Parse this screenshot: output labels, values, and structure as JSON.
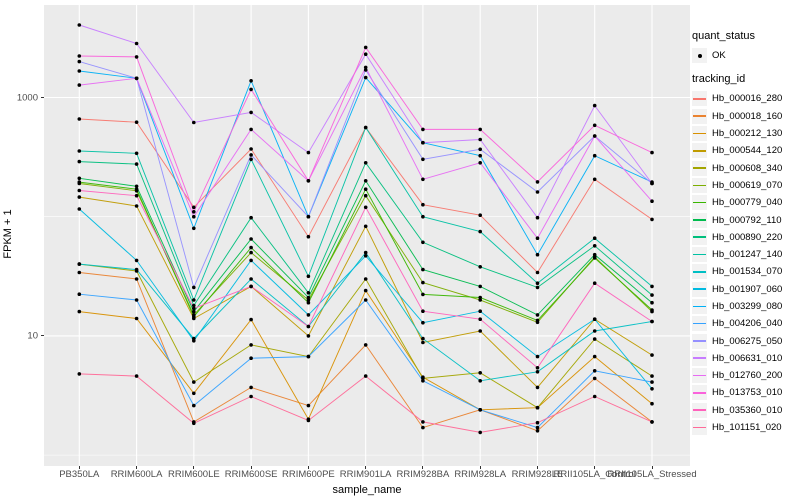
{
  "figure": {
    "panel_bg": "#EBEBEB",
    "grid_color": "#FFFFFF",
    "point_color": "#000000",
    "y_axis": {
      "label": "FPKM + 1",
      "major_ticks": [
        {
          "label": "1000",
          "value": 1000
        },
        {
          "label": "10",
          "value": 10
        }
      ],
      "minor_ticks": [
        100,
        1
      ]
    },
    "x_axis": {
      "label": "sample_name"
    }
  },
  "legend": {
    "quant_title": "quant_status",
    "quant_items": [
      {
        "label": "OK",
        "marker": "point"
      }
    ],
    "tracking_title": "tracking_id"
  },
  "chart_data": {
    "type": "line",
    "title": "",
    "xlabel": "sample_name",
    "ylabel": "FPKM + 1",
    "y_scale": "log10",
    "ylim": [
      0.8,
      6000
    ],
    "grid": "on",
    "legend_position": "right",
    "categories": [
      "PB350LA",
      "RRIM600LA",
      "RRIM600LE",
      "RRIM600SE",
      "RRIM600PE",
      "RRIM901LA",
      "RRIM928BA",
      "RRIM928LA",
      "RRIM928LE",
      "RRII105LA_Control",
      "RRII105LA_Stressed"
    ],
    "series": [
      {
        "name": "Hb_000016_280",
        "color": "#F8766D",
        "values": [
          660,
          620,
          120,
          370,
          68,
          560,
          126,
          103,
          34,
          206,
          95
        ]
      },
      {
        "name": "Hb_000018_160",
        "color": "#EA8331",
        "values": [
          34,
          30,
          1.9,
          3.7,
          2.6,
          8.4,
          1.7,
          2.4,
          1.6,
          4.4,
          1.9
        ]
      },
      {
        "name": "Hb_000212_130",
        "color": "#D89000",
        "values": [
          16,
          14,
          3.3,
          13.7,
          2.0,
          24,
          4.5,
          2.4,
          2.5,
          6.7,
          2.7
        ]
      },
      {
        "name": "Hb_000544_120",
        "color": "#C09B00",
        "values": [
          146,
          123,
          14,
          26,
          10,
          83,
          8.8,
          11,
          3.7,
          13.8,
          6.9
        ]
      },
      {
        "name": "Hb_000608_340",
        "color": "#A3A500",
        "values": [
          40,
          35,
          4.1,
          8.4,
          6.7,
          30,
          4.4,
          4.9,
          2.5,
          9.4,
          4.6
        ]
      },
      {
        "name": "Hb_000619_070",
        "color": "#7CAE00",
        "values": [
          190,
          165,
          15,
          50,
          20,
          150,
          28,
          20,
          13,
          46,
          16
        ]
      },
      {
        "name": "Hb_000779_040",
        "color": "#39B600",
        "values": [
          195,
          170,
          14.5,
          55,
          19,
          170,
          22.3,
          21,
          13.5,
          45,
          16.5
        ]
      },
      {
        "name": "Hb_000792_110",
        "color": "#00BB4E",
        "values": [
          210,
          180,
          16,
          65,
          21,
          200,
          36,
          26,
          15,
          48,
          19
        ]
      },
      {
        "name": "Hb_000890_220",
        "color": "#00BF7D",
        "values": [
          290,
          276,
          18,
          98,
          23,
          283,
          61,
          38,
          25.5,
          57,
          22
        ]
      },
      {
        "name": "Hb_001247_140",
        "color": "#00C1A3",
        "values": [
          356,
          340,
          20,
          303,
          31.6,
          560,
          100,
          75,
          27.7,
          66,
          26
        ]
      },
      {
        "name": "Hb_001534_070",
        "color": "#00BFC4",
        "values": [
          40,
          36,
          9.5,
          30,
          12,
          50,
          9.5,
          4.2,
          5.0,
          11,
          13.2
        ]
      },
      {
        "name": "Hb_001907_060",
        "color": "#00BAE0",
        "values": [
          116,
          43,
          9.1,
          43,
          15,
          47,
          12.9,
          16.1,
          6.7,
          13.8,
          3.6
        ]
      },
      {
        "name": "Hb_003299_080",
        "color": "#00B0F6",
        "values": [
          1670,
          1450,
          80,
          1380,
          100,
          1470,
          418,
          325,
          48,
          325,
          195
        ]
      },
      {
        "name": "Hb_004206_040",
        "color": "#35A2FF",
        "values": [
          22.4,
          20,
          2.6,
          6.5,
          6.7,
          20,
          4.2,
          2.4,
          1.7,
          5.1,
          4.1
        ]
      },
      {
        "name": "Hb_006275_050",
        "color": "#9590FF",
        "values": [
          2000,
          1450,
          25.5,
          330,
          100,
          1700,
          303,
          368,
          161,
          475,
          190
        ]
      },
      {
        "name": "Hb_006631_010",
        "color": "#C77CFF",
        "values": [
          4060,
          2840,
          617,
          750,
          345,
          2310,
          418,
          444,
          98,
          855,
          190
        ]
      },
      {
        "name": "Hb_012760_200",
        "color": "#E76BF3",
        "values": [
          1270,
          1450,
          100,
          540,
          200,
          1790,
          206,
          283,
          66,
          475,
          135
        ]
      },
      {
        "name": "Hb_013753_010",
        "color": "#FA62DB",
        "values": [
          2230,
          2190,
          110,
          1170,
          200,
          2630,
          540,
          540,
          196,
          585,
          345
        ]
      },
      {
        "name": "Hb_035360_010",
        "color": "#FF62BC",
        "values": [
          166,
          150,
          17,
          26,
          12,
          120,
          16.1,
          13.8,
          5.4,
          27.7,
          13.2
        ]
      },
      {
        "name": "Hb_101151_020",
        "color": "#FF6A98",
        "values": [
          4.8,
          4.6,
          1.85,
          3.1,
          1.95,
          4.6,
          1.9,
          1.55,
          1.87,
          3.1,
          1.9
        ]
      }
    ]
  }
}
